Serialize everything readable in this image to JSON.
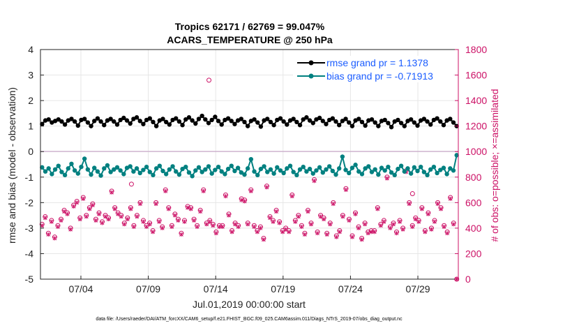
{
  "chart_data": {
    "type": "line",
    "title_line1": "Tropics 62171 / 62769 = 99.047%",
    "title_line2": "ACARS_TEMPERATURE @ 250 hPa",
    "ylabel_left": "rmse and bias (model - observation)",
    "ylabel_right": "# of obs: o=possible; ×=assimilated",
    "xlabel": "Jul.01,2019 00:00:00 start",
    "footnote": "data file: /Users/raeder/DAI/ATM_forcXX/CAM6_setup/f.e21.FHIST_BGC.f09_025.CAM6assim.011/Diags_NTrS_2019-07/obs_diag_output.nc",
    "ylim_left": [
      -5,
      4
    ],
    "ylim_right": [
      0,
      1800
    ],
    "xlim_days": [
      1,
      32
    ],
    "yticks_left": [
      "4",
      "3",
      "2",
      "1",
      "0",
      "-1",
      "-2",
      "-3",
      "-4",
      "-5"
    ],
    "yticks_right": [
      "1800",
      "1600",
      "1400",
      "1200",
      "1000",
      "800",
      "600",
      "400",
      "200",
      "0"
    ],
    "xticks": [
      {
        "label": "07/04",
        "day": 4
      },
      {
        "label": "07/09",
        "day": 9
      },
      {
        "label": "07/14",
        "day": 14
      },
      {
        "label": "07/19",
        "day": 19
      },
      {
        "label": "07/24",
        "day": 24
      },
      {
        "label": "07/29",
        "day": 29
      }
    ],
    "legend": [
      {
        "label": "rmse grand pr = 1.1378",
        "color": "#000000"
      },
      {
        "label": "bias grand pr = -0.71913",
        "color": "#008080"
      }
    ],
    "colors": {
      "rmse": "#000000",
      "bias": "#008080",
      "obs": "#cc1166",
      "zero": "#c8a8c8",
      "grid": "#e6e6e6"
    },
    "series": [
      {
        "name": "rmse",
        "values": [
          1.08,
          1.22,
          1.26,
          1.14,
          1.2,
          1.26,
          1.18,
          1.06,
          1.22,
          1.28,
          1.18,
          1.02,
          1.24,
          1.28,
          1.14,
          1.0,
          1.2,
          1.3,
          1.18,
          1.04,
          1.22,
          1.28,
          1.18,
          1.06,
          1.24,
          1.32,
          1.22,
          1.1,
          1.28,
          1.34,
          1.2,
          1.08,
          1.24,
          1.3,
          1.16,
          1.0,
          1.22,
          1.28,
          1.16,
          1.06,
          1.24,
          1.3,
          1.18,
          1.04,
          1.26,
          1.34,
          1.22,
          1.1,
          1.28,
          1.4,
          1.26,
          1.12,
          1.24,
          1.36,
          1.2,
          1.06,
          1.24,
          1.3,
          1.2,
          1.08,
          1.22,
          1.28,
          1.16,
          1.0,
          1.2,
          1.26,
          1.14,
          0.98,
          1.22,
          1.28,
          1.16,
          1.04,
          1.24,
          1.3,
          1.18,
          1.06,
          1.22,
          1.28,
          1.16,
          1.04,
          1.26,
          1.34,
          1.22,
          1.12,
          1.26,
          1.32,
          1.2,
          1.08,
          1.24,
          1.3,
          1.18,
          1.04,
          1.2,
          1.28,
          1.14,
          1.0,
          1.22,
          1.28,
          1.16,
          1.02,
          1.22,
          1.26,
          1.14,
          1.0,
          1.2,
          1.24,
          1.12,
          0.96,
          1.18,
          1.24,
          1.12,
          1.0,
          1.2,
          1.26,
          1.14,
          1.02,
          1.22,
          1.28,
          1.18,
          1.06,
          1.24,
          1.3,
          1.18,
          1.04,
          1.22,
          1.28,
          1.14,
          1.0
        ]
      },
      {
        "name": "bias",
        "values": [
          -0.62,
          -0.78,
          -0.66,
          -0.88,
          -0.7,
          -0.56,
          -0.8,
          -0.92,
          -0.66,
          -0.48,
          -0.74,
          -0.86,
          -0.6,
          -0.28,
          -0.7,
          -0.9,
          -0.64,
          -0.78,
          -0.94,
          -0.66,
          -0.54,
          -0.8,
          -0.7,
          -0.62,
          -0.74,
          -0.88,
          -0.64,
          -0.58,
          -0.78,
          -0.66,
          -0.84,
          -0.72,
          -0.6,
          -0.8,
          -0.92,
          -0.66,
          -0.56,
          -0.76,
          -0.88,
          -0.7,
          -0.58,
          -0.78,
          -0.9,
          -0.68,
          -0.6,
          -0.82,
          -0.96,
          -0.74,
          -0.62,
          -0.8,
          -0.7,
          -0.58,
          -0.86,
          -0.72,
          -0.6,
          -0.78,
          -0.88,
          -0.68,
          -0.56,
          -0.76,
          -0.64,
          -0.82,
          -0.9,
          -0.66,
          -0.3,
          -0.78,
          -0.92,
          -0.68,
          -0.58,
          -0.8,
          -0.7,
          -0.86,
          -0.62,
          -0.74,
          -0.84,
          -0.66,
          -0.56,
          -0.8,
          -0.92,
          -0.7,
          -0.6,
          -0.78,
          -0.68,
          -0.86,
          -0.74,
          -0.62,
          -0.82,
          -0.7,
          -0.58,
          -0.76,
          -0.9,
          -0.66,
          -0.2,
          -0.72,
          -0.84,
          -0.64,
          -0.52,
          -0.78,
          -0.88,
          -0.66,
          -0.58,
          -0.8,
          -0.7,
          -0.9,
          -0.64,
          -0.74,
          -0.6,
          -0.82,
          -0.92,
          -0.68,
          -0.56,
          -0.78,
          -0.66,
          -0.86,
          -0.62,
          -0.76,
          -0.6,
          -0.8,
          -0.92,
          -0.7,
          -0.6,
          -0.84,
          -0.72,
          -0.64,
          -0.88,
          -0.66,
          -0.74,
          -0.14
        ]
      },
      {
        "name": "obs_possible",
        "values": [
          430,
          490,
          360,
          460,
          330,
          420,
          470,
          540,
          520,
          400,
          580,
          610,
          480,
          640,
          500,
          560,
          590,
          470,
          520,
          450,
          500,
          480,
          690,
          560,
          520,
          500,
          440,
          480,
          560,
          420,
          500,
          600,
          460,
          420,
          440,
          380,
          600,
          460,
          410,
          700,
          560,
          420,
          510,
          470,
          360,
          460,
          570,
          560,
          470,
          420,
          540,
          700,
          440,
          460,
          430,
          370,
          420,
          420,
          660,
          510,
          380,
          440,
          420,
          630,
          620,
          440,
          700,
          420,
          380,
          410,
          320,
          730,
          490,
          460,
          540,
          450,
          380,
          400,
          380,
          660,
          460,
          500,
          420,
          360,
          540,
          440,
          780,
          370,
          500,
          480,
          360,
          440,
          600,
          340,
          380,
          500,
          710,
          470,
          340,
          520,
          410,
          320,
          440,
          370,
          380,
          380,
          560,
          430,
          460,
          800,
          410,
          440,
          370,
          460,
          400,
          850,
          600,
          420,
          480,
          460,
          560,
          380,
          520,
          400,
          460,
          600,
          560,
          420,
          370,
          640,
          440,
          0
        ]
      },
      {
        "name": "obs_assimilated",
        "values": [
          420,
          480,
          350,
          450,
          320,
          410,
          460,
          530,
          510,
          390,
          570,
          600,
          470,
          630,
          490,
          550,
          580,
          460,
          510,
          440,
          490,
          470,
          680,
          550,
          510,
          490,
          430,
          470,
          550,
          410,
          490,
          590,
          450,
          410,
          430,
          370,
          590,
          450,
          400,
          690,
          550,
          410,
          500,
          460,
          350,
          450,
          560,
          550,
          460,
          410,
          530,
          690,
          430,
          450,
          420,
          360,
          410,
          410,
          650,
          500,
          370,
          430,
          410,
          620,
          610,
          430,
          690,
          410,
          370,
          400,
          310,
          720,
          480,
          450,
          530,
          440,
          370,
          390,
          370,
          650,
          450,
          490,
          410,
          350,
          530,
          430,
          770,
          360,
          490,
          470,
          350,
          430,
          590,
          330,
          370,
          490,
          700,
          460,
          330,
          510,
          400,
          310,
          430,
          360,
          370,
          370,
          550,
          420,
          450,
          790,
          400,
          430,
          360,
          450,
          390,
          840,
          590,
          410,
          470,
          450,
          550,
          370,
          510,
          390,
          450,
          590,
          550,
          410,
          360,
          630,
          430,
          0
        ]
      },
      {
        "name": "obs_extra_possible",
        "values": [
          {
            "day": 7.75,
            "value": 745
          },
          {
            "day": 13.5,
            "value": 1560
          },
          {
            "day": 28.6,
            "value": 670
          }
        ]
      }
    ]
  }
}
